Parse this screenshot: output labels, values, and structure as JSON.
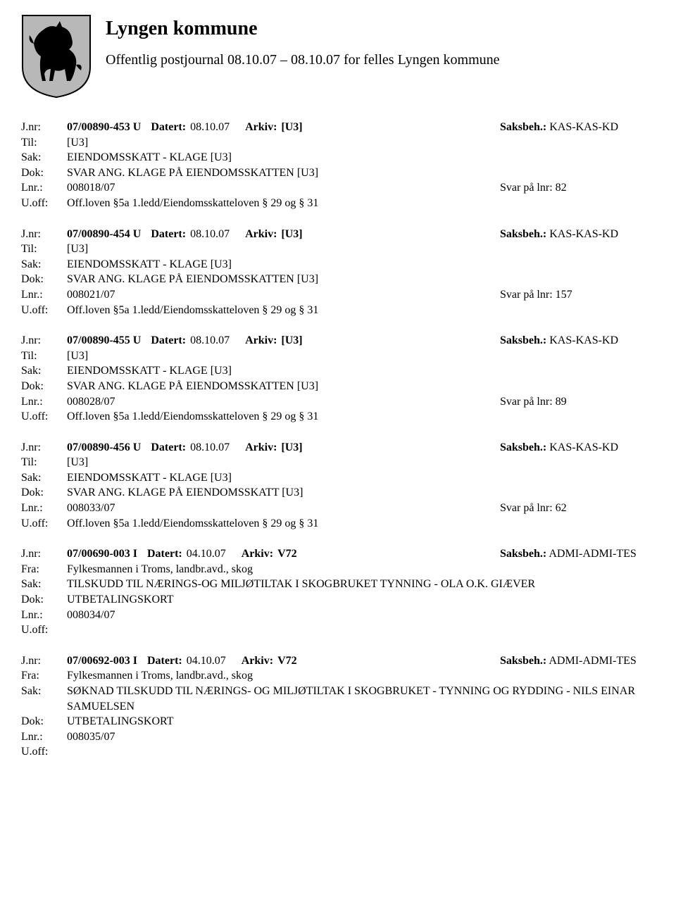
{
  "header": {
    "org_name": "Lyngen kommune",
    "subtitle": "Offentlig postjournal 08.10.07 – 08.10.07 for felles Lyngen kommune"
  },
  "labels": {
    "jnr": "J.nr:",
    "til": "Til:",
    "fra": "Fra:",
    "sak": "Sak:",
    "dok": "Dok:",
    "lnr": "Lnr.:",
    "uoff": "U.off:",
    "datert": "Datert:",
    "arkiv": "Arkiv:",
    "saksbeh": "Saksbeh.:"
  },
  "entries": [
    {
      "jnr": "07/00890-453 U",
      "datert": "08.10.07",
      "arkiv": "[U3]",
      "saksbeh": "KAS-KAS-KD",
      "party_label": "Til:",
      "party": "[U3]",
      "sak": "EIENDOMSSKATT - KLAGE [U3]",
      "dok": "SVAR ANG. KLAGE PÅ EIENDOMSSKATTEN [U3]",
      "lnr": "008018/07",
      "lnr_right": "Svar på lnr: 82",
      "uoff": "Off.loven §5a 1.ledd/Eiendomsskatteloven § 29 og § 31"
    },
    {
      "jnr": "07/00890-454 U",
      "datert": "08.10.07",
      "arkiv": "[U3]",
      "saksbeh": "KAS-KAS-KD",
      "party_label": "Til:",
      "party": "[U3]",
      "sak": "EIENDOMSSKATT - KLAGE [U3]",
      "dok": "SVAR ANG. KLAGE PÅ EIENDOMSSKATTEN [U3]",
      "lnr": "008021/07",
      "lnr_right": "Svar på lnr: 157",
      "uoff": "Off.loven §5a 1.ledd/Eiendomsskatteloven § 29 og § 31"
    },
    {
      "jnr": "07/00890-455 U",
      "datert": "08.10.07",
      "arkiv": "[U3]",
      "saksbeh": "KAS-KAS-KD",
      "party_label": "Til:",
      "party": "[U3]",
      "sak": "EIENDOMSSKATT - KLAGE [U3]",
      "dok": "SVAR ANG. KLAGE PÅ EIENDOMSSKATTEN [U3]",
      "lnr": "008028/07",
      "lnr_right": "Svar på lnr: 89",
      "uoff": "Off.loven §5a 1.ledd/Eiendomsskatteloven § 29 og § 31"
    },
    {
      "jnr": "07/00890-456 U",
      "datert": "08.10.07",
      "arkiv": "[U3]",
      "saksbeh": "KAS-KAS-KD",
      "party_label": "Til:",
      "party": "[U3]",
      "sak": "EIENDOMSSKATT - KLAGE [U3]",
      "dok": "SVAR ANG. KLAGE PÅ EIENDOMSSKATT [U3]",
      "lnr": "008033/07",
      "lnr_right": "Svar på lnr: 62",
      "uoff": "Off.loven §5a 1.ledd/Eiendomsskatteloven § 29 og § 31"
    },
    {
      "jnr": "07/00690-003 I",
      "datert": "04.10.07",
      "arkiv": "V72",
      "saksbeh": "ADMI-ADMI-TES",
      "party_label": "Fra:",
      "party": "Fylkesmannen i Troms, landbr.avd., skog",
      "sak": "TILSKUDD TIL NÆRINGS-OG MILJØTILTAK I SKOGBRUKET TYNNING - OLA O.K. GIÆVER",
      "dok": "UTBETALINGSKORT",
      "lnr": "008034/07",
      "lnr_right": "",
      "uoff": ""
    },
    {
      "jnr": "07/00692-003 I",
      "datert": "04.10.07",
      "arkiv": "V72",
      "saksbeh": "ADMI-ADMI-TES",
      "party_label": "Fra:",
      "party": "Fylkesmannen i Troms, landbr.avd., skog",
      "sak": "SØKNAD TILSKUDD TIL NÆRINGS- OG MILJØTILTAK I SKOGBRUKET - TYNNING OG RYDDING - NILS EINAR SAMUELSEN",
      "dok": "UTBETALINGSKORT",
      "lnr": "008035/07",
      "lnr_right": "",
      "uoff": ""
    }
  ]
}
